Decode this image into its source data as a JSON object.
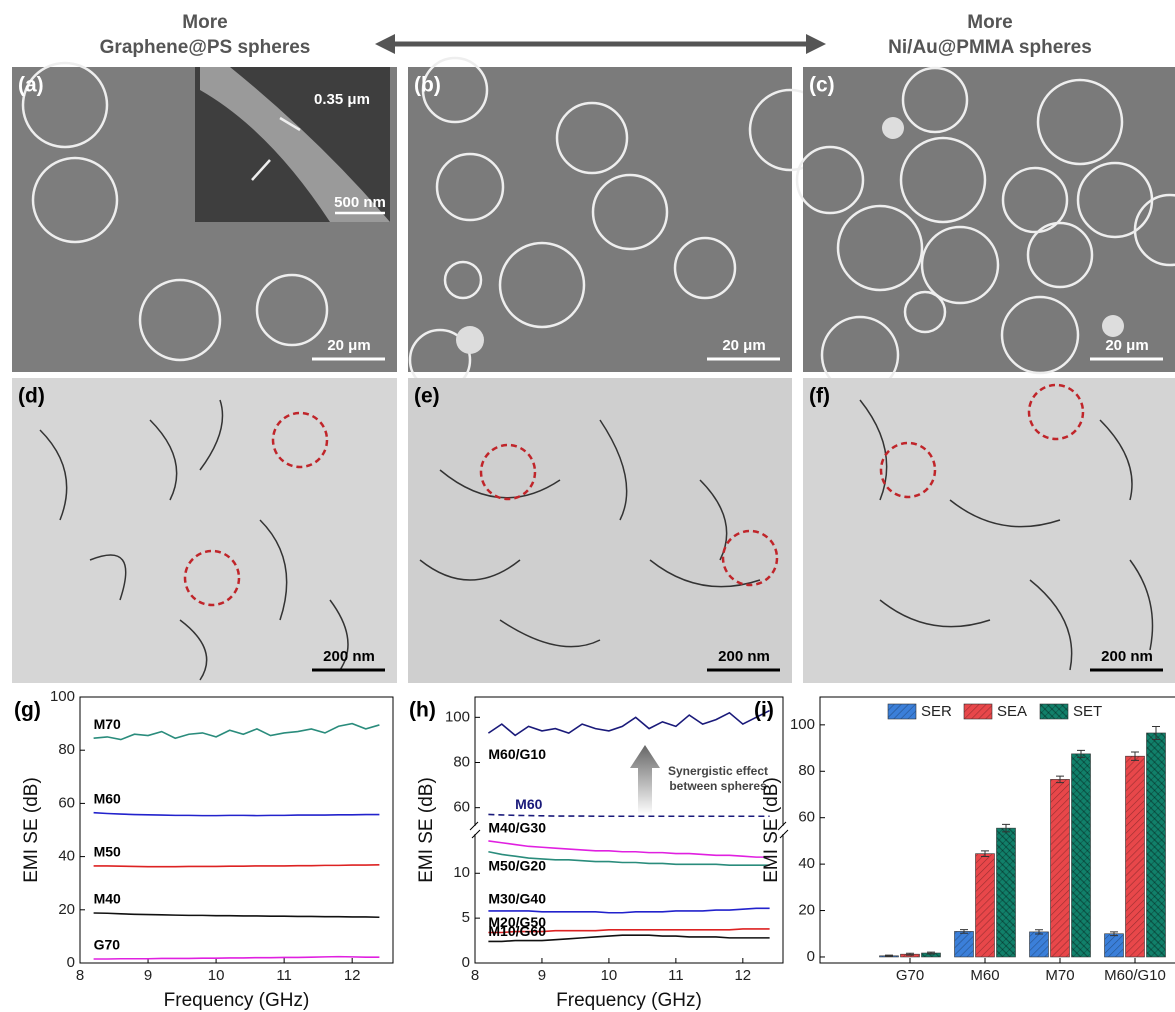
{
  "header": {
    "left": [
      "More",
      "Graphene@PS spheres"
    ],
    "right": [
      "More",
      "Ni/Au@PMMA spheres"
    ]
  },
  "panels": [
    {
      "label": "(a)",
      "scale_bar": "20 μm",
      "inset_labels": [
        "0.35 μm",
        "500 nm"
      ]
    },
    {
      "label": "(b)",
      "scale_bar": "20 μm"
    },
    {
      "label": "(c)",
      "scale_bar": "20 μm"
    },
    {
      "label": "(d)",
      "scale_bar": "200 nm"
    },
    {
      "label": "(e)",
      "scale_bar": "200 nm"
    },
    {
      "label": "(f)",
      "scale_bar": "200 nm"
    }
  ],
  "chart_data": [
    {
      "type": "line",
      "panel_label": "(g)",
      "x_label": "Frequency (GHz)",
      "y_label": "EMI SE (dB)",
      "xlim": [
        8,
        12.6
      ],
      "xticks": [
        8,
        9,
        10,
        11,
        12
      ],
      "ylim": [
        0,
        100
      ],
      "yticks": [
        0,
        20,
        40,
        60,
        80,
        100
      ],
      "x": [
        8.2,
        8.4,
        8.6,
        8.8,
        9.0,
        9.2,
        9.4,
        9.6,
        9.8,
        10.0,
        10.2,
        10.4,
        10.6,
        10.8,
        11.0,
        11.2,
        11.4,
        11.6,
        11.8,
        12.0,
        12.2,
        12.4
      ],
      "series": [
        {
          "name": "M70",
          "color": "#2a8c7c",
          "values": [
            84.5,
            85,
            84,
            86,
            85.5,
            87,
            84.5,
            86,
            86.5,
            85,
            87.5,
            86,
            88,
            85.5,
            86.5,
            87,
            88,
            86.5,
            89,
            90,
            88,
            89.5
          ]
        },
        {
          "name": "M60",
          "color": "#2222cc",
          "values": [
            56.5,
            56.2,
            56,
            55.8,
            55.7,
            55.6,
            55.5,
            55.5,
            55.4,
            55.4,
            55.5,
            55.5,
            55.4,
            55.5,
            55.5,
            55.6,
            55.6,
            55.6,
            55.7,
            55.7,
            55.8,
            55.8
          ]
        },
        {
          "name": "M50",
          "color": "#dd2222",
          "values": [
            36.5,
            36.5,
            36.4,
            36.3,
            36.2,
            36.2,
            36.2,
            36.3,
            36.3,
            36.3,
            36.4,
            36.4,
            36.5,
            36.5,
            36.5,
            36.6,
            36.6,
            36.7,
            36.7,
            36.8,
            36.8,
            36.9
          ]
        },
        {
          "name": "M40",
          "color": "#111111",
          "values": [
            18.8,
            18.7,
            18.5,
            18.3,
            18.2,
            18.1,
            18,
            17.9,
            17.9,
            17.8,
            17.8,
            17.7,
            17.7,
            17.6,
            17.6,
            17.5,
            17.5,
            17.4,
            17.4,
            17.3,
            17.3,
            17.2
          ]
        },
        {
          "name": "G70",
          "color": "#e020e0",
          "values": [
            1.5,
            1.5,
            1.6,
            1.6,
            1.6,
            1.7,
            1.7,
            1.7,
            1.8,
            1.8,
            1.9,
            1.9,
            2,
            2,
            2.1,
            2.1,
            2.2,
            2.3,
            2.4,
            2.3,
            2.2,
            2.2
          ]
        }
      ]
    },
    {
      "type": "broken-line",
      "panel_label": "(h)",
      "x_label": "Frequency (GHz)",
      "y_label": "EMI SE (dB)",
      "annotation": [
        "Synergistic effect",
        "between spheres"
      ],
      "xlim": [
        8,
        12.6
      ],
      "xticks": [
        8,
        9,
        10,
        11,
        12
      ],
      "ylim": [
        0,
        14.6
      ],
      "yticks": [
        0,
        5,
        10
      ],
      "y2lim": [
        51,
        109
      ],
      "y2ticks": [
        60,
        80,
        100
      ],
      "x": [
        8.2,
        8.4,
        8.6,
        8.8,
        9.0,
        9.2,
        9.4,
        9.6,
        9.8,
        10.0,
        10.2,
        10.4,
        10.6,
        10.8,
        11.0,
        11.2,
        11.4,
        11.6,
        11.8,
        12.0,
        12.2,
        12.4
      ],
      "series": [
        {
          "name": "M60/G10",
          "color": "#1a1a7a",
          "axis": "y2",
          "values": [
            93,
            97,
            92,
            96,
            94,
            95,
            93,
            97,
            95,
            94,
            96,
            100,
            95,
            98,
            96,
            101,
            97,
            99,
            102,
            97,
            100,
            103
          ]
        },
        {
          "name": "M60",
          "color": "#1a1a7a",
          "axis": "y2",
          "dash": true,
          "values": [
            57,
            56.8,
            56.6,
            56.5,
            56.4,
            56.3,
            56.3,
            56.3,
            56.2,
            56.2,
            56.2,
            56.2,
            56.2,
            56.2,
            56.2,
            56.2,
            56.2,
            56.2,
            56.2,
            56.2,
            56.2,
            56.2
          ]
        },
        {
          "name": "M40/G30",
          "color": "#e020e0",
          "values": [
            13.6,
            13.4,
            13.2,
            13,
            12.9,
            12.8,
            12.7,
            12.6,
            12.5,
            12.5,
            12.4,
            12.4,
            12.3,
            12.3,
            12.2,
            12.2,
            12.1,
            12,
            12,
            11.9,
            11.8,
            11.8
          ]
        },
        {
          "name": "M50/G20",
          "color": "#2a8c7c",
          "values": [
            12.4,
            12.1,
            11.9,
            11.7,
            11.6,
            11.5,
            11.5,
            11.4,
            11.3,
            11.3,
            11.2,
            11.2,
            11.1,
            11.1,
            11,
            11,
            11,
            11,
            10.9,
            10.9,
            10.9,
            10.9
          ]
        },
        {
          "name": "M30/G40",
          "color": "#2222cc",
          "values": [
            5.8,
            5.8,
            5.8,
            5.8,
            5.7,
            5.7,
            5.7,
            5.7,
            5.7,
            5.6,
            5.6,
            5.7,
            5.7,
            5.7,
            5.8,
            5.8,
            5.8,
            5.9,
            5.9,
            6,
            6.1,
            6.1
          ]
        },
        {
          "name": "M20/G50",
          "color": "#dd2222",
          "values": [
            3.4,
            3.4,
            3.5,
            3.5,
            3.5,
            3.6,
            3.6,
            3.6,
            3.6,
            3.7,
            3.7,
            3.7,
            3.7,
            3.7,
            3.7,
            3.7,
            3.7,
            3.7,
            3.7,
            3.8,
            3.8,
            3.8
          ]
        },
        {
          "name": "M10/G60",
          "color": "#111111",
          "values": [
            2.4,
            2.4,
            2.5,
            2.5,
            2.5,
            2.6,
            2.7,
            2.8,
            2.9,
            3,
            3.1,
            3.1,
            3.1,
            3,
            3,
            2.9,
            2.9,
            2.9,
            2.8,
            2.8,
            2.8,
            2.8
          ]
        }
      ]
    },
    {
      "type": "bar",
      "panel_label": "(i)",
      "y_label": "EMI SE (dB)",
      "legend": "top",
      "categories": [
        "G70",
        "M60",
        "M70",
        "M60/G10"
      ],
      "ylim": [
        -2.6,
        112
      ],
      "yticks": [
        0,
        20,
        40,
        60,
        80,
        100
      ],
      "series": [
        {
          "name": "SER",
          "color": "#3b7fd9",
          "values": [
            0.5,
            11,
            10.8,
            10
          ],
          "errors": [
            0.3,
            0.8,
            0.9,
            0.8
          ]
        },
        {
          "name": "SEA",
          "color": "#e8474a",
          "values": [
            1.2,
            44.5,
            76.5,
            86.5
          ],
          "errors": [
            0.4,
            1.2,
            1.4,
            1.8
          ]
        },
        {
          "name": "SET",
          "color": "#11806a",
          "values": [
            1.7,
            55.5,
            87.5,
            96.5
          ],
          "errors": [
            0.4,
            1.6,
            1.5,
            2.8
          ]
        }
      ]
    }
  ]
}
